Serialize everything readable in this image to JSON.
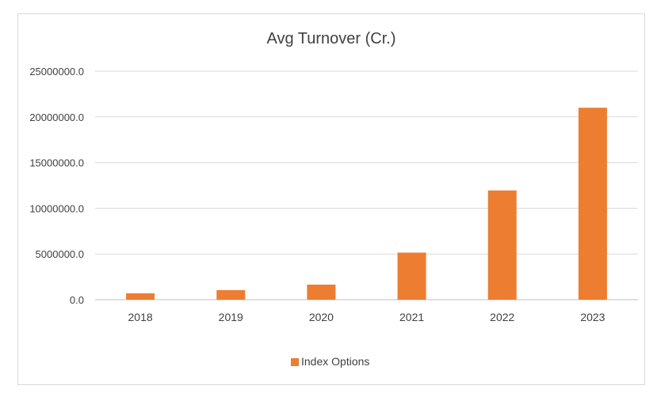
{
  "chart_data": {
    "type": "bar",
    "title": "Avg Turnover (Cr.)",
    "xlabel": "",
    "ylabel": "",
    "categories": [
      "2018",
      "2019",
      "2020",
      "2021",
      "2022",
      "2023"
    ],
    "series": [
      {
        "name": "Index Options",
        "color": "#ed7d31",
        "values": [
          700000,
          1050000,
          1650000,
          5150000,
          11950000,
          21000000
        ]
      }
    ],
    "ylim": [
      0,
      25000000
    ],
    "yticks": [
      "0.0",
      "5000000.0",
      "10000000.0",
      "15000000.0",
      "20000000.0",
      "25000000.0"
    ],
    "grid": true,
    "legend_position": "bottom"
  }
}
